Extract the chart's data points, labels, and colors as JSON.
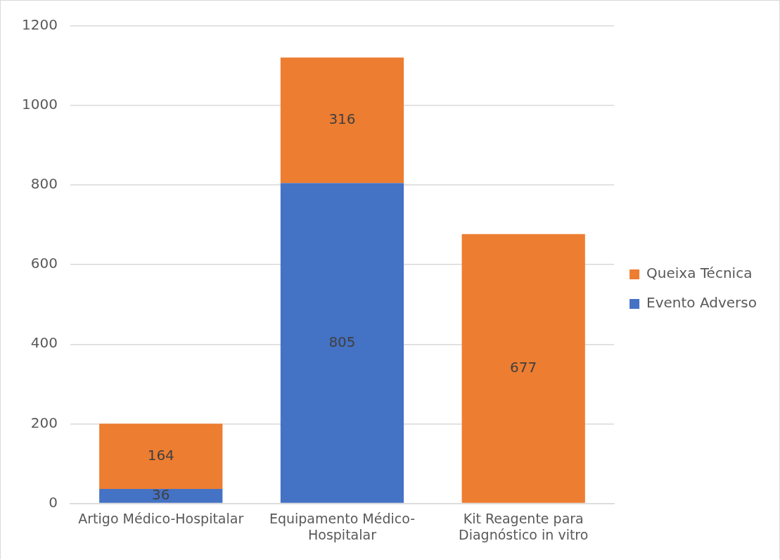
{
  "chart_data": {
    "type": "bar",
    "stacked": true,
    "categories": [
      "Artigo Médico-Hospitalar",
      "Equipamento Médico-Hospitalar",
      "Kit Reagente para Diagnóstico in vitro"
    ],
    "series": [
      {
        "name": "Evento Adverso",
        "color": "#4472c4",
        "values": [
          36,
          805,
          null
        ]
      },
      {
        "name": "Queixa Técnica",
        "color": "#ed7d31",
        "values": [
          164,
          316,
          677
        ]
      }
    ],
    "ylim": [
      0,
      1200
    ],
    "yticks": [
      0,
      200,
      400,
      600,
      800,
      1000,
      1200
    ],
    "grid": "y",
    "legend": "right",
    "data_labels": true
  }
}
